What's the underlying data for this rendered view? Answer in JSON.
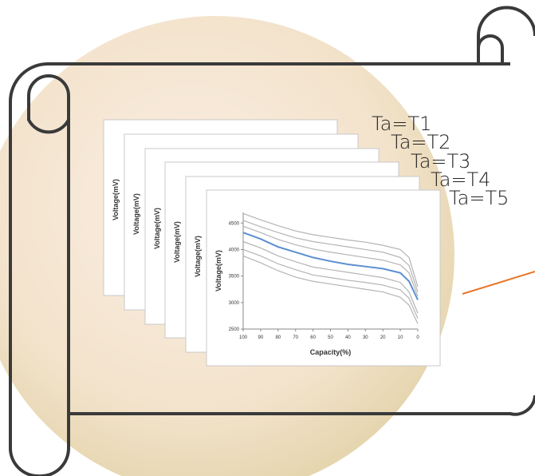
{
  "labels": [
    "Ta=T1",
    "Ta=T2",
    "Ta=T3",
    "Ta=T4",
    "Ta=T5"
  ],
  "cards": [
    {
      "y_label": "Voltage(mV)"
    },
    {
      "y_label": "Voltage(mV)"
    },
    {
      "y_label": "Voltage(mV)"
    },
    {
      "y_label": "Voltage(mV)"
    },
    {
      "y_label": "Voltage(mV)"
    }
  ],
  "chart_data": {
    "type": "line",
    "x_label": "Capacity(%)",
    "y_label": "Voltage(mV)",
    "x": [
      100,
      90,
      80,
      70,
      60,
      50,
      40,
      30,
      20,
      10,
      5,
      0
    ],
    "xlim": [
      100,
      0
    ],
    "xticks": [
      100,
      90,
      80,
      70,
      60,
      50,
      40,
      30,
      20,
      10,
      0
    ],
    "ylim": [
      2500,
      4700
    ],
    "yticks": [
      2500,
      3000,
      3500,
      4000,
      4500
    ],
    "series": [
      {
        "color": "#b4b4b4",
        "values": [
          4680,
          4560,
          4450,
          4350,
          4280,
          4230,
          4180,
          4140,
          4080,
          4000,
          3850,
          3300
        ]
      },
      {
        "color": "#b4b4b4",
        "values": [
          4550,
          4430,
          4320,
          4220,
          4150,
          4100,
          4050,
          4000,
          3950,
          3850,
          3700,
          3200
        ]
      },
      {
        "color": "#b4b4b4",
        "values": [
          4440,
          4320,
          4190,
          4090,
          4010,
          3950,
          3900,
          3850,
          3800,
          3710,
          3560,
          3120
        ]
      },
      {
        "color": "#5b8fd0",
        "values": [
          4320,
          4200,
          4050,
          3950,
          3850,
          3780,
          3720,
          3680,
          3640,
          3560,
          3400,
          3050
        ]
      },
      {
        "color": "#b4b4b4",
        "values": [
          4150,
          4030,
          3880,
          3770,
          3670,
          3620,
          3570,
          3520,
          3470,
          3380,
          3200,
          2800
        ]
      },
      {
        "color": "#b4b4b4",
        "values": [
          4000,
          3880,
          3730,
          3620,
          3520,
          3470,
          3420,
          3380,
          3330,
          3240,
          3080,
          2700
        ]
      },
      {
        "color": "#b4b4b4",
        "values": [
          3880,
          3750,
          3600,
          3480,
          3400,
          3350,
          3300,
          3250,
          3200,
          3100,
          2950,
          2600
        ]
      }
    ]
  }
}
